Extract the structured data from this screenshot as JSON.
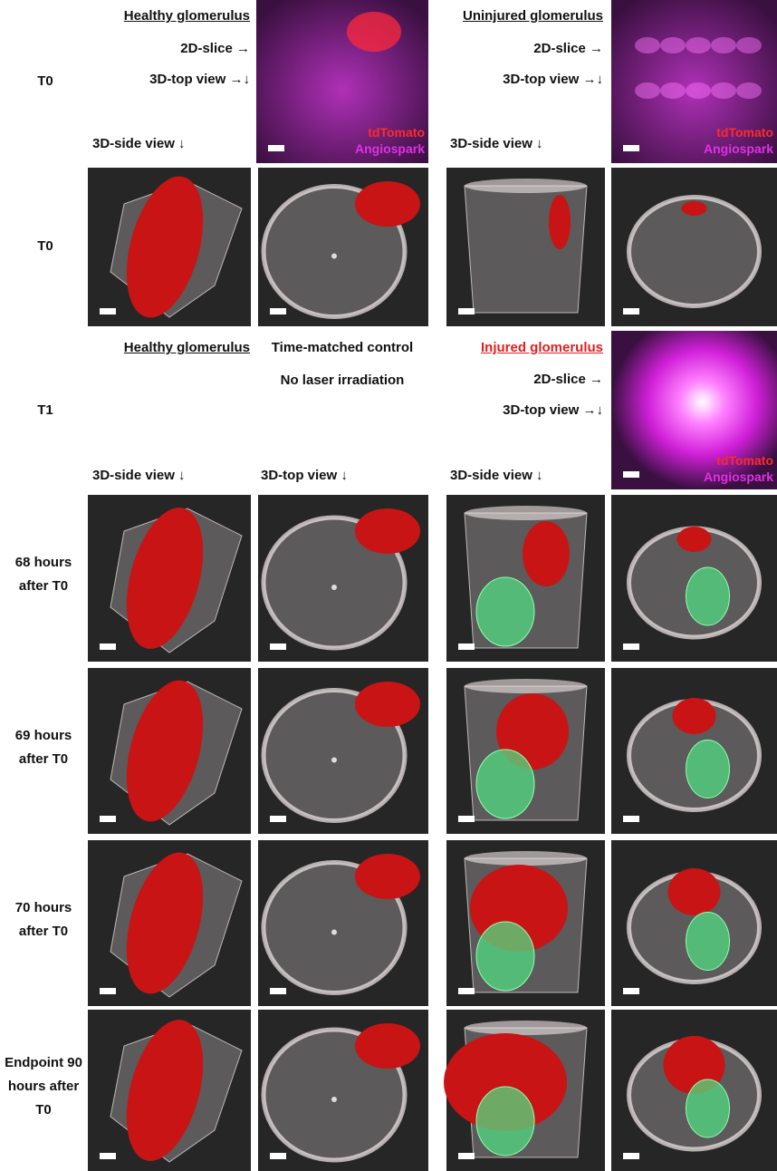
{
  "top": {
    "row_label": "T0",
    "left": {
      "title": "Healthy glomerulus",
      "items": [
        "2D-slice →",
        "3D-top view →↓"
      ],
      "side": "3D-side view ↓"
    },
    "right": {
      "title": "Uninjured glomerulus",
      "items": [
        "2D-slice →",
        "3D-top view →↓"
      ],
      "side": "3D-side view ↓"
    },
    "image_channels": [
      "tdTomato",
      "Angiospark"
    ]
  },
  "t0_row": {
    "label": "T0"
  },
  "t1": {
    "row_label": "T1",
    "left": {
      "title": "Healthy glomerulus",
      "lines": [
        "Time-matched control",
        "No laser irradiation"
      ]
    },
    "right": {
      "title": "Injured glomerulus",
      "items": [
        "2D-slice →",
        "3D-top view →↓"
      ]
    },
    "image_channels": [
      "tdTomato",
      "Angiospark"
    ],
    "column_headers": [
      "3D-side view ↓",
      "3D-top view ↓",
      "3D-side view ↓"
    ]
  },
  "time_rows": [
    [
      "68 hours",
      "after T0"
    ],
    [
      "69 hours",
      "after T0"
    ],
    [
      "70 hours",
      "after T0"
    ],
    [
      "Endpoint 90",
      "hours after",
      "T0"
    ]
  ]
}
